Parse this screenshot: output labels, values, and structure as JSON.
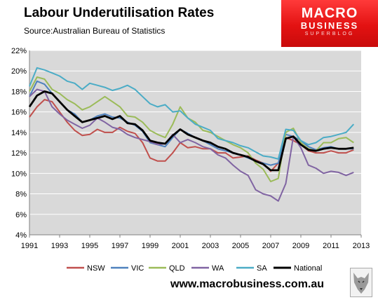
{
  "title": "Labour Underutilisation Rates",
  "source": "Source:Australian Bureau of Statistics",
  "logo": {
    "line1": "MACRO",
    "line2": "BUSINESS",
    "line3": "SUPERBLOG"
  },
  "website": "www.macrobusiness.com.au",
  "colors": {
    "NSW": "#c0504d",
    "VIC": "#4f81bd",
    "QLD": "#9bbb59",
    "WA": "#8064a2",
    "SA": "#4bacc6",
    "National": "#000000",
    "plot_bg": "#d9d9d9",
    "grid": "#ffffff"
  },
  "chart_data": {
    "type": "line",
    "title": "Labour Underutilisation Rates",
    "xlabel": "",
    "ylabel": "",
    "xlim": [
      1991,
      2013
    ],
    "ylim": [
      4,
      22
    ],
    "grid": true,
    "legend_position": "bottom",
    "x_ticks": [
      "1991",
      "1993",
      "1995",
      "1997",
      "1999",
      "2001",
      "2003",
      "2005",
      "2007",
      "2009",
      "2011",
      "2013"
    ],
    "y_ticks": [
      "4%",
      "6%",
      "8%",
      "10%",
      "12%",
      "14%",
      "16%",
      "18%",
      "20%",
      "22%"
    ],
    "series": [
      {
        "name": "NSW",
        "color": "#c0504d",
        "x": [
          1991,
          1991.5,
          1992,
          1992.5,
          1993,
          1993.5,
          1994,
          1994.5,
          1995,
          1995.5,
          1996,
          1996.5,
          1997,
          1997.5,
          1998,
          1998.5,
          1999,
          1999.5,
          2000,
          2000.5,
          2001,
          2001.5,
          2002,
          2002.5,
          2003,
          2003.5,
          2004,
          2004.5,
          2005,
          2005.5,
          2006,
          2006.5,
          2007,
          2007.5,
          2008,
          2008.5,
          2009,
          2009.5,
          2010,
          2010.5,
          2011,
          2011.5,
          2012,
          2012.5
        ],
        "y": [
          15.5,
          16.5,
          17.2,
          17.0,
          16.0,
          15.0,
          14.2,
          13.7,
          13.8,
          14.3,
          14.0,
          14.0,
          14.5,
          14.1,
          13.9,
          13.0,
          11.5,
          11.2,
          11.2,
          12.0,
          13.0,
          12.5,
          12.6,
          12.4,
          12.4,
          12.0,
          12.0,
          11.5,
          11.6,
          11.7,
          11.3,
          11.0,
          10.2,
          11.0,
          13.5,
          13.2,
          12.8,
          12.2,
          12.0,
          12.0,
          12.2,
          12.0,
          12.0,
          12.3
        ]
      },
      {
        "name": "VIC",
        "color": "#4f81bd",
        "x": [
          1991,
          1991.5,
          1992,
          1992.5,
          1993,
          1993.5,
          1994,
          1994.5,
          1995,
          1995.5,
          1996,
          1996.5,
          1997,
          1997.5,
          1998,
          1998.5,
          1999,
          1999.5,
          2000,
          2000.5,
          2001,
          2001.5,
          2002,
          2002.5,
          2003,
          2003.5,
          2004,
          2004.5,
          2005,
          2005.5,
          2006,
          2006.5,
          2007,
          2007.5,
          2008,
          2008.5,
          2009,
          2009.5,
          2010,
          2010.5,
          2011,
          2011.5,
          2012,
          2012.5
        ],
        "y": [
          17.5,
          19.0,
          18.7,
          17.8,
          17.0,
          16.2,
          15.8,
          15.0,
          15.2,
          15.6,
          15.8,
          15.5,
          15.4,
          15.0,
          14.7,
          14.1,
          13.0,
          12.8,
          12.6,
          13.5,
          14.3,
          13.9,
          13.5,
          13.2,
          12.8,
          12.4,
          12.2,
          12.0,
          11.8,
          11.5,
          11.2,
          11.0,
          10.8,
          11.0,
          13.8,
          13.6,
          13.2,
          12.6,
          12.3,
          12.5,
          12.6,
          12.4,
          12.4,
          12.4
        ]
      },
      {
        "name": "QLD",
        "color": "#9bbb59",
        "x": [
          1991,
          1991.5,
          1992,
          1992.5,
          1993,
          1993.5,
          1994,
          1994.5,
          1995,
          1995.5,
          1996,
          1996.5,
          1997,
          1997.5,
          1998,
          1998.5,
          1999,
          1999.5,
          2000,
          2000.5,
          2001,
          2001.5,
          2002,
          2002.5,
          2003,
          2003.5,
          2004,
          2004.5,
          2005,
          2005.5,
          2006,
          2006.5,
          2007,
          2007.5,
          2008,
          2008.5,
          2009,
          2009.5,
          2010,
          2010.5,
          2011,
          2011.5,
          2012,
          2012.5
        ],
        "y": [
          18.0,
          19.4,
          19.2,
          18.2,
          17.8,
          17.2,
          16.8,
          16.2,
          16.5,
          17.0,
          17.5,
          17.0,
          16.5,
          15.6,
          15.5,
          15.0,
          14.2,
          13.8,
          13.5,
          14.8,
          16.5,
          15.4,
          15.0,
          14.2,
          14.0,
          13.6,
          13.2,
          12.8,
          12.5,
          12.0,
          11.0,
          10.4,
          9.2,
          9.5,
          14.0,
          14.4,
          13.0,
          12.4,
          12.2,
          13.0,
          13.0,
          13.4,
          13.5,
          13.0
        ]
      },
      {
        "name": "WA",
        "color": "#8064a2",
        "x": [
          1991,
          1991.5,
          1992,
          1992.5,
          1993,
          1993.5,
          1994,
          1994.5,
          1995,
          1995.5,
          1996,
          1996.5,
          1997,
          1997.5,
          1998,
          1998.5,
          1999,
          1999.5,
          2000,
          2000.5,
          2001,
          2001.5,
          2002,
          2002.5,
          2003,
          2003.5,
          2004,
          2004.5,
          2005,
          2005.5,
          2006,
          2006.5,
          2007,
          2007.5,
          2008,
          2008.5,
          2009,
          2009.5,
          2010,
          2010.5,
          2011,
          2011.5,
          2012,
          2012.5
        ],
        "y": [
          17.5,
          18.2,
          18.0,
          16.5,
          15.8,
          15.2,
          14.8,
          14.4,
          14.7,
          15.4,
          15.0,
          14.5,
          14.3,
          13.8,
          13.5,
          13.3,
          13.1,
          12.8,
          12.9,
          13.8,
          13.0,
          13.3,
          13.0,
          12.6,
          12.4,
          11.8,
          11.5,
          10.8,
          10.2,
          9.8,
          8.4,
          8.0,
          7.8,
          7.3,
          9.0,
          13.6,
          12.5,
          10.8,
          10.5,
          10.0,
          10.2,
          10.1,
          9.8,
          10.1
        ]
      },
      {
        "name": "SA",
        "color": "#4bacc6",
        "x": [
          1991,
          1991.5,
          1992,
          1992.5,
          1993,
          1993.5,
          1994,
          1994.5,
          1995,
          1995.5,
          1996,
          1996.5,
          1997,
          1997.5,
          1998,
          1998.5,
          1999,
          1999.5,
          2000,
          2000.5,
          2001,
          2001.5,
          2002,
          2002.5,
          2003,
          2003.5,
          2004,
          2004.5,
          2005,
          2005.5,
          2006,
          2006.5,
          2007,
          2007.5,
          2008,
          2008.5,
          2009,
          2009.5,
          2010,
          2010.5,
          2011,
          2011.5,
          2012,
          2012.5
        ],
        "y": [
          18.5,
          20.3,
          20.1,
          19.8,
          19.5,
          19.0,
          18.8,
          18.2,
          18.8,
          18.6,
          18.4,
          18.1,
          18.3,
          18.6,
          18.2,
          17.5,
          16.8,
          16.5,
          16.7,
          16.0,
          16.1,
          15.4,
          14.8,
          14.5,
          14.2,
          13.4,
          13.2,
          13.0,
          12.7,
          12.5,
          12.1,
          11.7,
          11.6,
          11.4,
          14.3,
          14.2,
          13.2,
          12.8,
          13.0,
          13.5,
          13.6,
          13.8,
          14.0,
          14.8
        ]
      },
      {
        "name": "National",
        "color": "#000000",
        "x": [
          1991,
          1991.5,
          1992,
          1992.5,
          1993,
          1993.5,
          1994,
          1994.5,
          1995,
          1995.5,
          1996,
          1996.5,
          1997,
          1997.5,
          1998,
          1998.5,
          1999,
          1999.5,
          2000,
          2000.5,
          2001,
          2001.5,
          2002,
          2002.5,
          2003,
          2003.5,
          2004,
          2004.5,
          2005,
          2005.5,
          2006,
          2006.5,
          2007,
          2007.5,
          2008,
          2008.5,
          2009,
          2009.5,
          2010,
          2010.5,
          2011,
          2011.5,
          2012,
          2012.5
        ],
        "y": [
          16.5,
          17.6,
          18.0,
          17.8,
          17.0,
          16.2,
          15.6,
          15.0,
          15.2,
          15.4,
          15.6,
          15.3,
          15.6,
          14.9,
          14.8,
          14.2,
          13.2,
          13.0,
          12.9,
          13.7,
          14.3,
          13.8,
          13.5,
          13.2,
          13.0,
          12.6,
          12.4,
          12.0,
          11.8,
          11.6,
          11.2,
          10.9,
          10.3,
          10.3,
          13.4,
          13.6,
          12.8,
          12.3,
          12.2,
          12.4,
          12.5,
          12.4,
          12.4,
          12.5
        ]
      }
    ]
  }
}
